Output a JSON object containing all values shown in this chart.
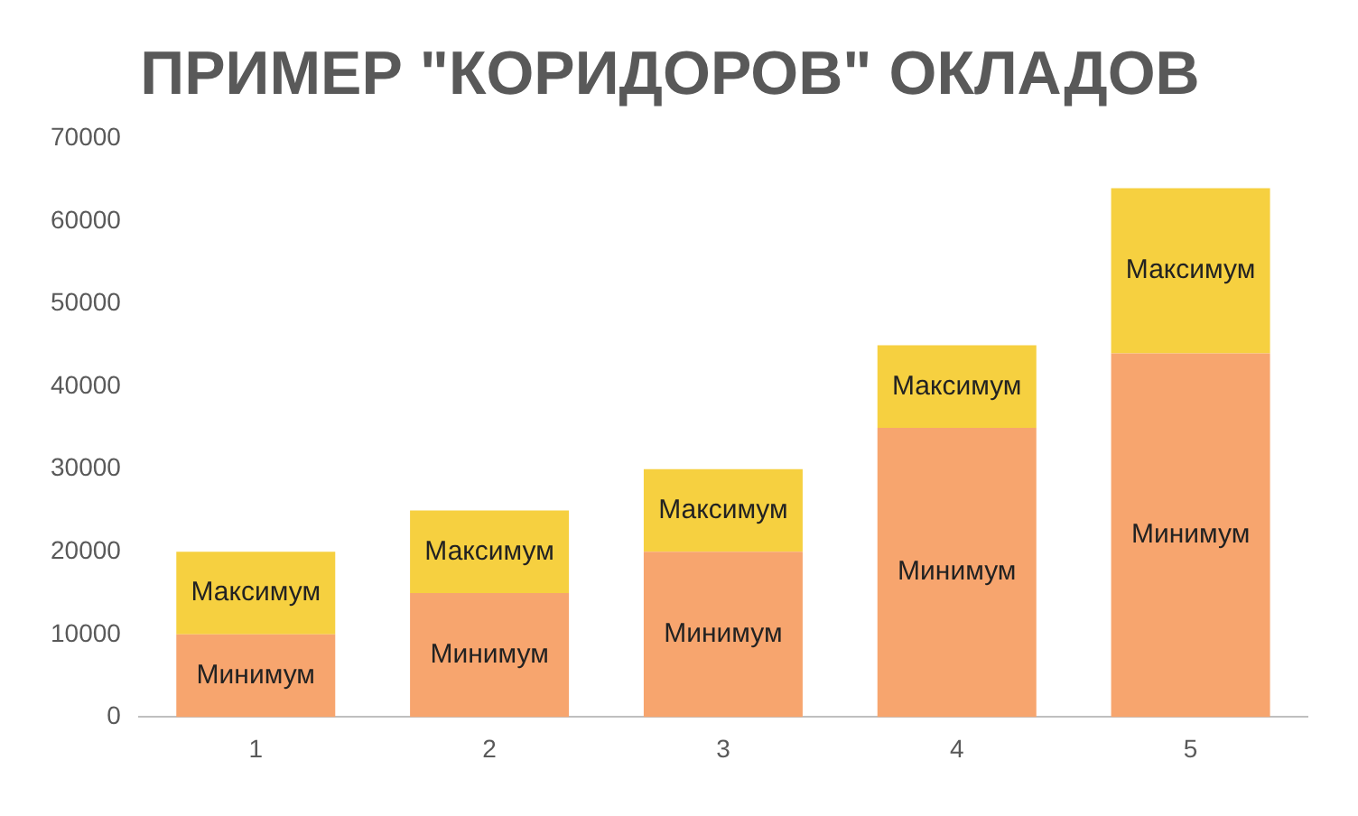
{
  "chart_data": {
    "type": "bar",
    "title": "ПРИМЕР \"КОРИДОРОВ\" ОКЛАДОВ",
    "categories": [
      "1",
      "2",
      "3",
      "4",
      "5"
    ],
    "stacked": true,
    "grid": false,
    "legend": false,
    "series": [
      {
        "name": "Минимум",
        "color": "#f7a56e",
        "values": [
          10000,
          15000,
          20000,
          35000,
          44000
        ]
      },
      {
        "name": "Максимум",
        "color": "#f6d040",
        "values": [
          10000,
          10000,
          10000,
          10000,
          20000
        ]
      }
    ],
    "ylim": [
      0,
      70000
    ],
    "yticks": [
      0,
      10000,
      20000,
      30000,
      40000,
      50000,
      60000,
      70000
    ]
  }
}
